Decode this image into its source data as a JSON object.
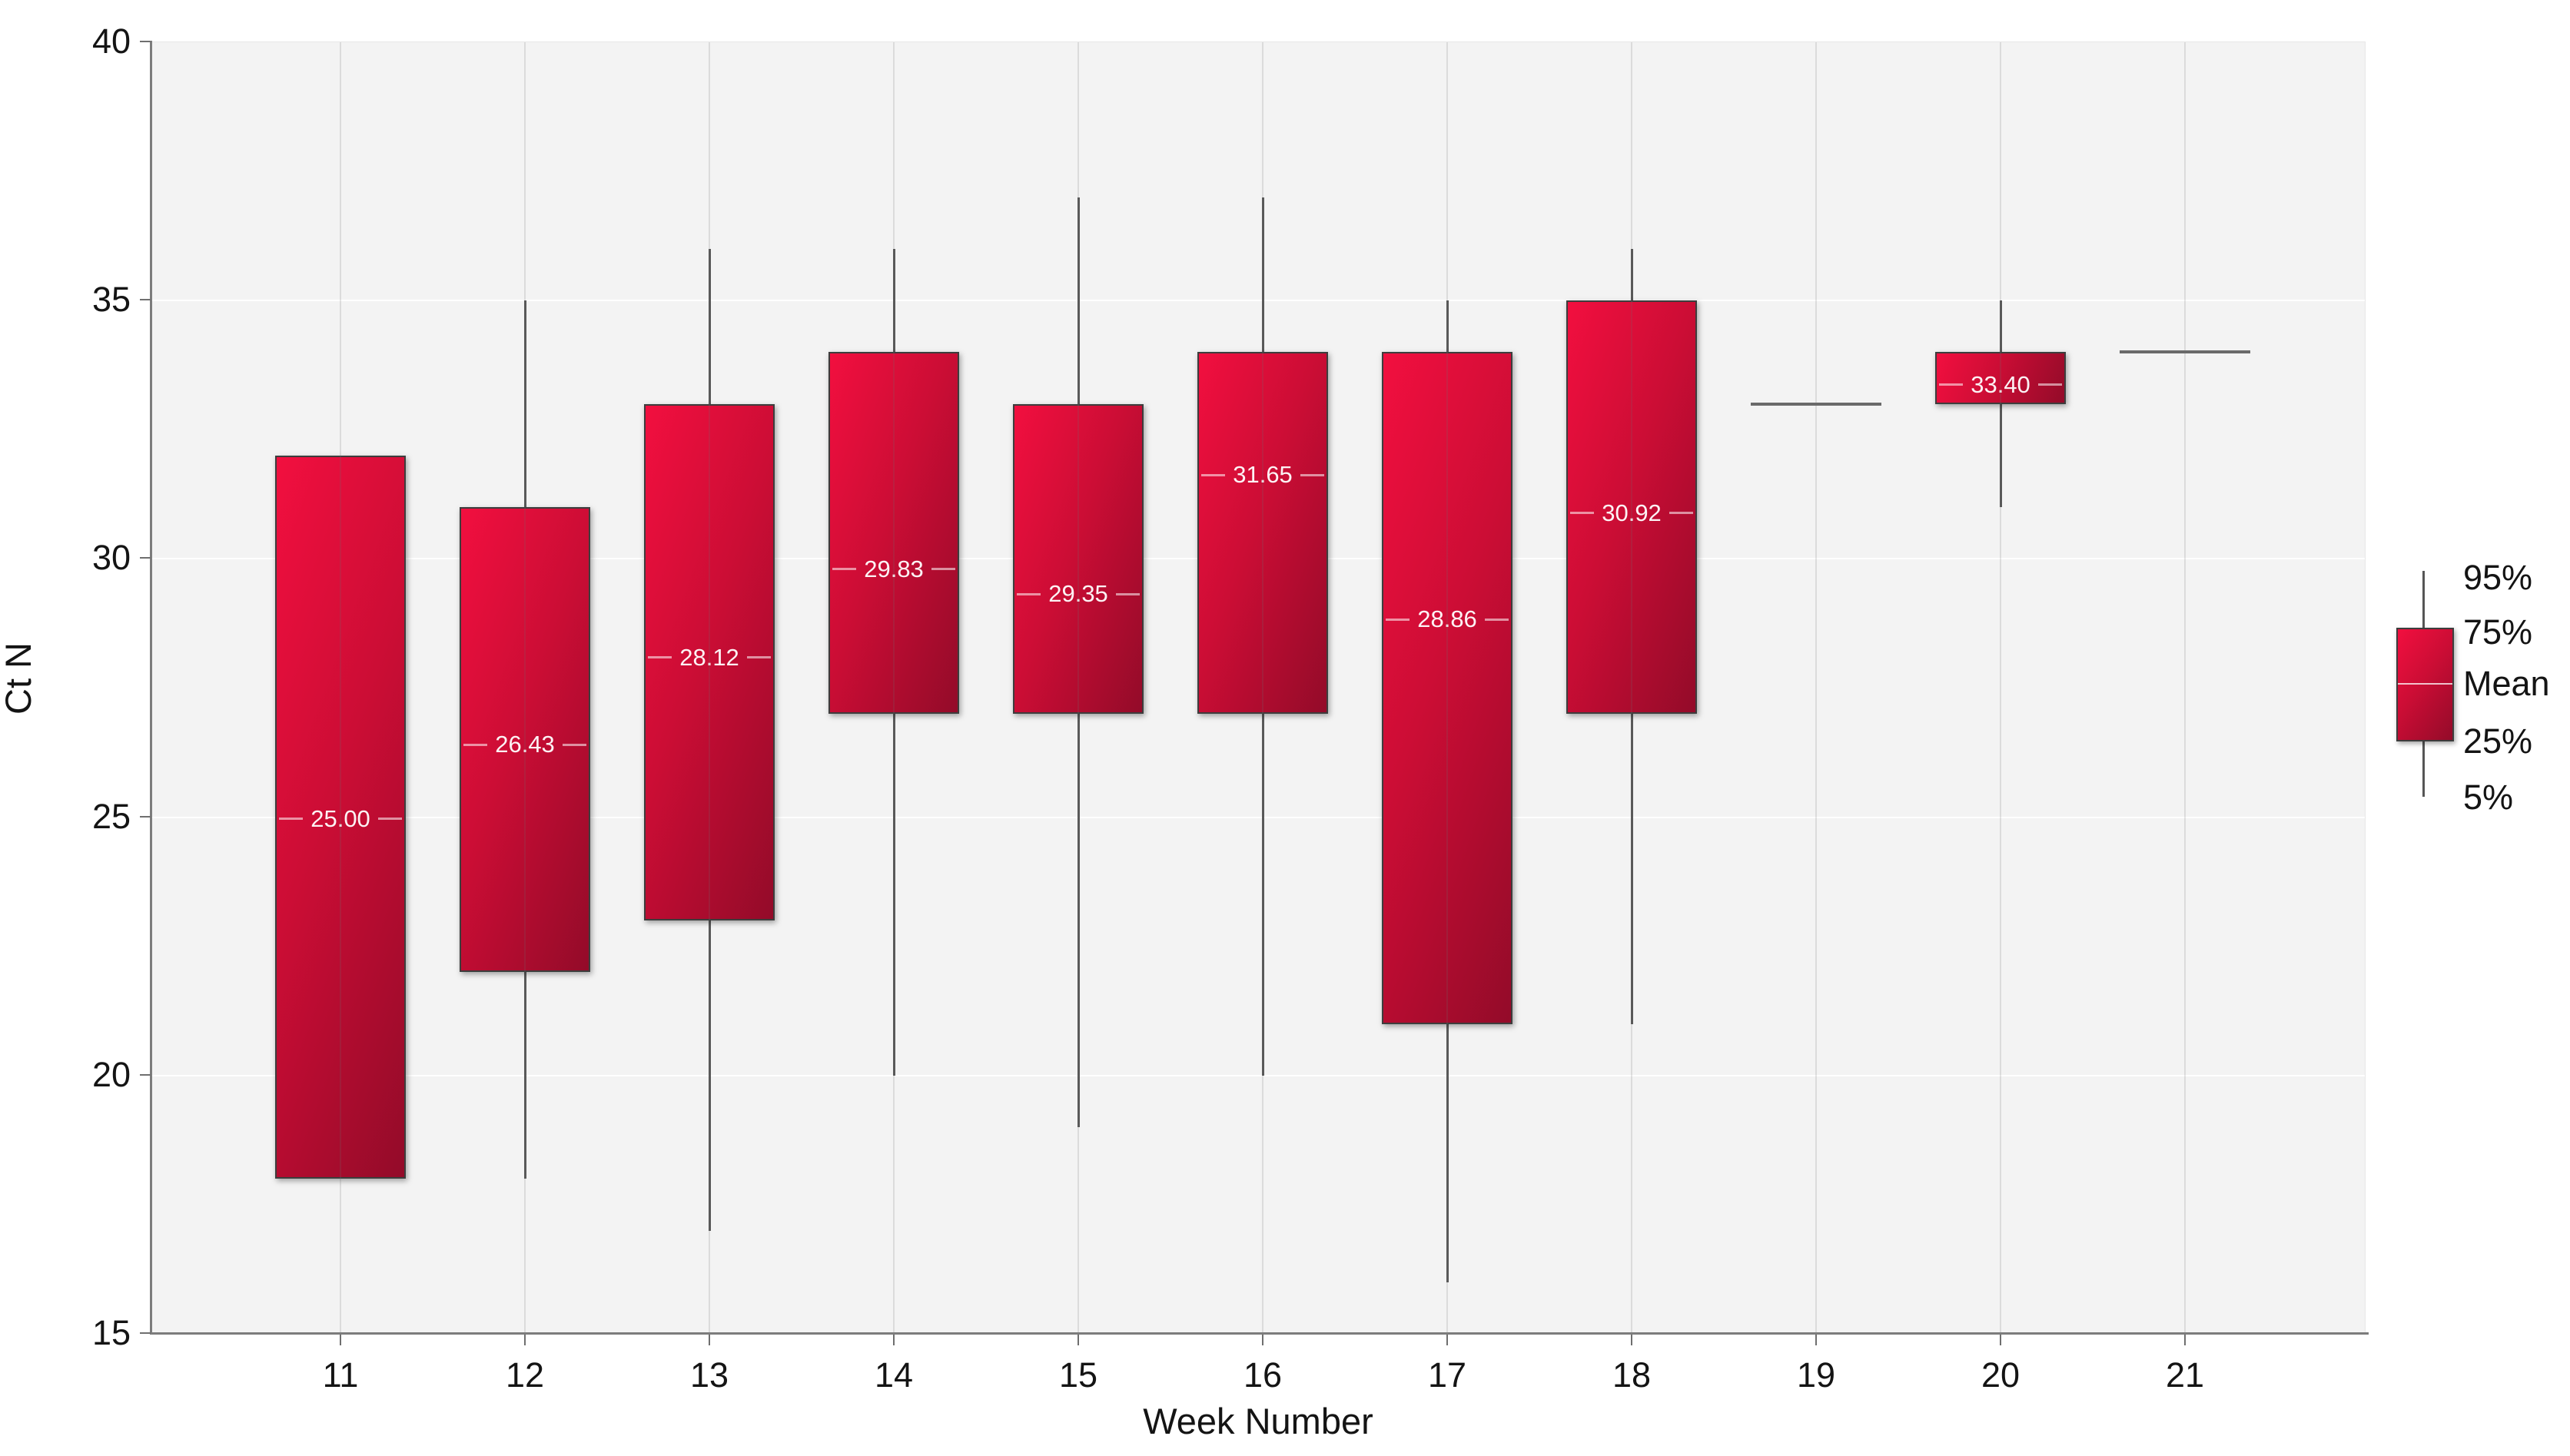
{
  "chart_data": {
    "type": "boxplot",
    "title": "",
    "xlabel": "Week Number",
    "ylabel": "Ct N",
    "ylim": [
      15,
      40
    ],
    "yticks": [
      15,
      20,
      25,
      30,
      35,
      40
    ],
    "x_categories": [
      "11",
      "12",
      "13",
      "14",
      "15",
      "16",
      "17",
      "18",
      "19",
      "20",
      "21"
    ],
    "grid": {
      "horizontal": true,
      "vertical": true
    },
    "legend": {
      "position": "right",
      "entries": [
        "95%",
        "75%",
        "Mean",
        "25%",
        "5%"
      ]
    },
    "series": [
      {
        "week": "11",
        "p95": null,
        "p75": 32,
        "mean": 25.0,
        "p25": 18,
        "p5": null,
        "mean_label": "25.00"
      },
      {
        "week": "12",
        "p95": 35,
        "p75": 31,
        "mean": 26.43,
        "p25": 22,
        "p5": 18,
        "mean_label": "26.43"
      },
      {
        "week": "13",
        "p95": 36,
        "p75": 33,
        "mean": 28.12,
        "p25": 23,
        "p5": 17,
        "mean_label": "28.12"
      },
      {
        "week": "14",
        "p95": 36,
        "p75": 34,
        "mean": 29.83,
        "p25": 27,
        "p5": 20,
        "mean_label": "29.83"
      },
      {
        "week": "15",
        "p95": 37,
        "p75": 33,
        "mean": 29.35,
        "p25": 27,
        "p5": 19,
        "mean_label": "29.35"
      },
      {
        "week": "16",
        "p95": 37,
        "p75": 34,
        "mean": 31.65,
        "p25": 27,
        "p5": 20,
        "mean_label": "31.65"
      },
      {
        "week": "17",
        "p95": 35,
        "p75": 34,
        "mean": 28.86,
        "p25": 21,
        "p5": 16,
        "mean_label": "28.86"
      },
      {
        "week": "18",
        "p95": 36,
        "p75": 35,
        "mean": 30.92,
        "p25": 27,
        "p5": 21,
        "mean_label": "30.92"
      },
      {
        "week": "19",
        "p95": null,
        "p75": null,
        "mean": 33,
        "p25": null,
        "p5": null,
        "mean_label": null
      },
      {
        "week": "20",
        "p95": 35,
        "p75": 34,
        "mean": 33.4,
        "p25": 33,
        "p5": 31,
        "mean_label": "33.40"
      },
      {
        "week": "21",
        "p95": null,
        "p75": null,
        "mean": 34,
        "p25": null,
        "p5": null,
        "mean_label": null
      }
    ],
    "colors": {
      "bar_gradient_start": "#f20f3f",
      "bar_gradient_end": "#930b29",
      "bar_border": "#3d3d3d",
      "whisker": "#565656",
      "mean_line_on_bar": "#ffffff",
      "plot_background": "#f3f3f3",
      "page_background": "#ffffff",
      "axis_line": "#7c7c7c",
      "text": "#141414"
    }
  }
}
